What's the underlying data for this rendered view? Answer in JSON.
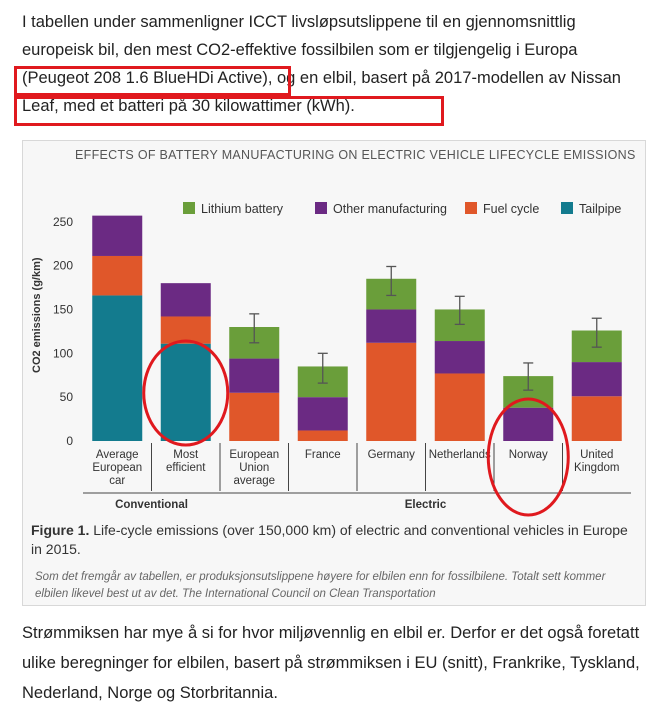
{
  "intro": {
    "text_a": "I tabellen under sammenligner ICCT livsløpsutslippene til en gjennomsnittlig europeisk bil, den mest CO2-effektive fossilbilen som er tilgjengelig i Europa ",
    "highlight1": "(Peugeot 208 1.6 BlueHDi Active)",
    "text_b": ", og en elbil, basert på 2017-modellen av ",
    "highlight2": "Nissan Leaf, med et batteri på 30 kilowattimer (kWh)."
  },
  "figure": {
    "caption_label": "Figure 1.",
    "caption_text": " Life-cycle emissions (over 150,000 km) of electric and conventional vehicles in Europe in 2015.",
    "source": "Som det fremgår av tabellen, er produksjonsutslippene høyere for elbilen enn for fossilbilene. Totalt sett kommer elbilen likevel best ut av det. The International Council on Clean Transportation"
  },
  "outro": "Strømmiksen har mye å si for hvor miljøvennlig en elbil er. Derfor er det også foretatt ulike beregninger for elbilen, basert på strømmiksen i EU (snitt), Frankrike, Tyskland, Nederland, Norge og Storbritannia.",
  "colors": {
    "lithium": "#6a9e3a",
    "other_manufacturing": "#6b2a83",
    "fuel_cycle": "#e0572a",
    "tailpipe": "#137b8e",
    "highlight": "#e0191e"
  },
  "chart_data": {
    "type": "bar",
    "stacked": true,
    "title": "EFFECTS OF BATTERY MANUFACTURING ON ELECTRIC VEHICLE LIFECYCLE EMISSIONS",
    "ylabel": "CO2 emissions (g/km)",
    "ylim": [
      0,
      260
    ],
    "yticks": [
      0,
      50,
      100,
      150,
      200,
      250
    ],
    "grid": false,
    "legend_position": "top",
    "categories": [
      "Average European car",
      "Most efficient",
      "European Union average",
      "France",
      "Germany",
      "Netherlands",
      "Norway",
      "United Kingdom"
    ],
    "category_lines": [
      [
        "Average",
        "European",
        "car"
      ],
      [
        "Most",
        "efficient"
      ],
      [
        "European",
        "Union",
        "average"
      ],
      [
        "France"
      ],
      [
        "Germany"
      ],
      [
        "Netherlands"
      ],
      [
        "Norway"
      ],
      [
        "United",
        "Kingdom"
      ]
    ],
    "groups": [
      {
        "label": "Conventional",
        "categories": [
          0,
          1
        ]
      },
      {
        "label": "Electric",
        "categories": [
          2,
          3,
          4,
          5,
          6,
          7
        ]
      }
    ],
    "series": [
      {
        "name": "Tailpipe",
        "color_key": "tailpipe",
        "values": [
          166,
          111,
          0,
          0,
          0,
          0,
          0,
          0
        ]
      },
      {
        "name": "Fuel cycle",
        "color_key": "fuel_cycle",
        "values": [
          45,
          31,
          55,
          12,
          112,
          77,
          0,
          51
        ]
      },
      {
        "name": "Other manufacturing",
        "color_key": "other_manufacturing",
        "values": [
          46,
          38,
          39,
          38,
          38,
          37,
          38,
          39
        ]
      },
      {
        "name": "Lithium battery",
        "color_key": "lithium",
        "values": [
          0,
          0,
          36,
          35,
          35,
          36,
          36,
          36
        ]
      }
    ],
    "error_bars": [
      null,
      null,
      [
        112,
        145
      ],
      [
        66,
        100
      ],
      [
        166,
        199
      ],
      [
        133,
        165
      ],
      [
        58,
        89
      ],
      [
        107,
        140
      ]
    ],
    "legend_order": [
      "Lithium battery",
      "Other manufacturing",
      "Fuel cycle",
      "Tailpipe"
    ],
    "circled_categories": [
      1,
      6
    ]
  }
}
